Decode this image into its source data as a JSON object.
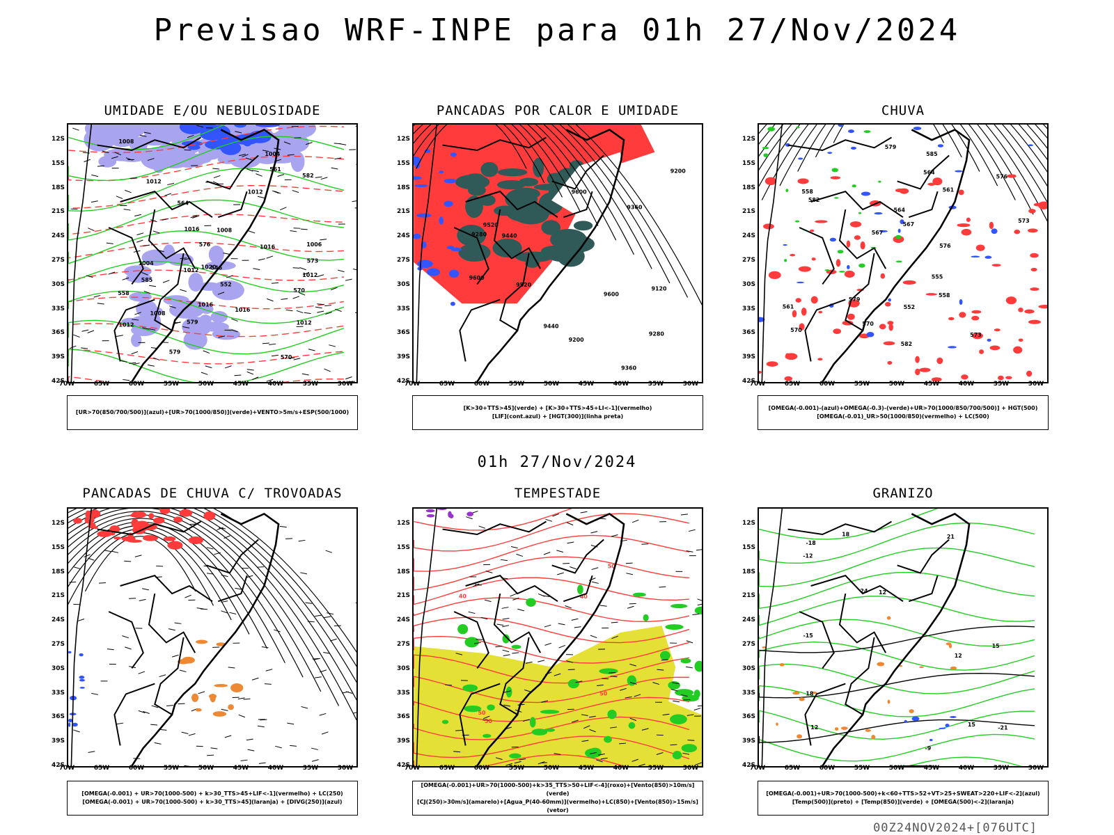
{
  "title": "Previsao WRF-INPE  para 01h 27/Nov/2024",
  "subtitle": "01h 27/Nov/2024",
  "footer": "00Z24NOV2024+[076UTC]",
  "lat_ticks": [
    "12S",
    "15S",
    "18S",
    "21S",
    "24S",
    "27S",
    "30S",
    "33S",
    "36S",
    "39S",
    "42S"
  ],
  "lon_ticks": [
    "70W",
    "65W",
    "60W",
    "55W",
    "50W",
    "45W",
    "40W",
    "35W",
    "30W"
  ],
  "colors": {
    "red": "#ff3b3b",
    "green": "#22cc22",
    "blue": "#3355ff",
    "lilac": "#a9a4ef",
    "teal": "#2f5a57",
    "yellow": "#e5e036",
    "orange": "#ee8833",
    "purple": "#9933cc"
  },
  "panels": [
    {
      "title": "UMIDADE E/OU NEBULOSIDADE",
      "legend": [
        "[UR>70(850/700/500)](azul)+[UR>70(1000/850)](verde)+VENTO>5m/s+ESP(500/1000)"
      ],
      "labels": [
        "1008",
        "1006",
        "1012",
        "1016",
        "1016",
        "1012",
        "1012",
        "1004",
        "1008",
        "1004",
        "1012",
        "1020",
        "1016",
        "1012",
        "1008",
        "1016",
        "1012",
        "570",
        "570",
        "579",
        "576",
        "585",
        "561",
        "552",
        "558",
        "546",
        "579",
        "582",
        "573",
        "564"
      ]
    },
    {
      "title": "PANCADAS POR CALOR E UMIDADE",
      "legend": [
        "[K>30+TTS>45](verde) + [K>30+TTS>45+LI<-1](vermelho)",
        "[LIF](cont.azul) + [HGT(300)](linha preta)"
      ],
      "labels": [
        "9600",
        "9600",
        "9520",
        "9600",
        "9520",
        "9440",
        "9360",
        "9280",
        "9200",
        "9120",
        "9280",
        "9200",
        "9360",
        "9440"
      ]
    },
    {
      "title": "CHUVA",
      "legend": [
        "[OMEGA(-0.001)-(azul)+OMEGA(-0.3)-(verde)+UR>70(1000/850/700/500)] + HGT(500)",
        "[OMEGA(-0.01)_UR>50(1000/850)(vermelho) + LC(500)"
      ],
      "labels": [
        "585",
        "582",
        "579",
        "576",
        "573",
        "570",
        "567",
        "564",
        "561",
        "558",
        "555",
        "552",
        "582",
        "579",
        "576",
        "573",
        "570",
        "567",
        "564",
        "561",
        "558"
      ]
    },
    {
      "title": "PANCADAS DE CHUVA C/ TROVOADAS",
      "legend": [
        "[OMEGA(-0.001) + UR>70(1000-500) + k>30_TTS>45+LIF<-1](vermelho) + LC(250)",
        "[OMEGA(-0.001) + UR>70(1000-500) + k>30_TTS>45](laranja) + [DIVG(250)](azul)"
      ],
      "labels": []
    },
    {
      "title": "TEMPESTADE",
      "legend": [
        "[OMEGA(-0.001)+UR>70(1000-500)+k>35_TTS>50+LIF<-4](roxo)+[Vento(850)>10m/s](verde)",
        "[CJ(250)>30m/s](amarelo)+[Agua_P(40-60mm)](vermelho)+LC(850)+[Vento(850)>15m/s](vetor)"
      ],
      "labels": [
        "50",
        "40",
        "50",
        "50",
        "40",
        "50"
      ]
    },
    {
      "title": "GRANIZO",
      "legend": [
        "[OMEGA(-0.001)+UR>70(1000-500)+k<60+TTS>52+VT>25+SWEAT>220+LIF<-2](azul)",
        "[Temp(500)](preto) + [Temp(850)](verde) + [OMEGA(500)<-2](laranja)"
      ],
      "labels": [
        "12",
        "15",
        "12",
        "18",
        "12",
        "15",
        "18",
        "21",
        "24",
        "-9",
        "-12",
        "-15",
        "-18",
        "-21"
      ]
    }
  ]
}
